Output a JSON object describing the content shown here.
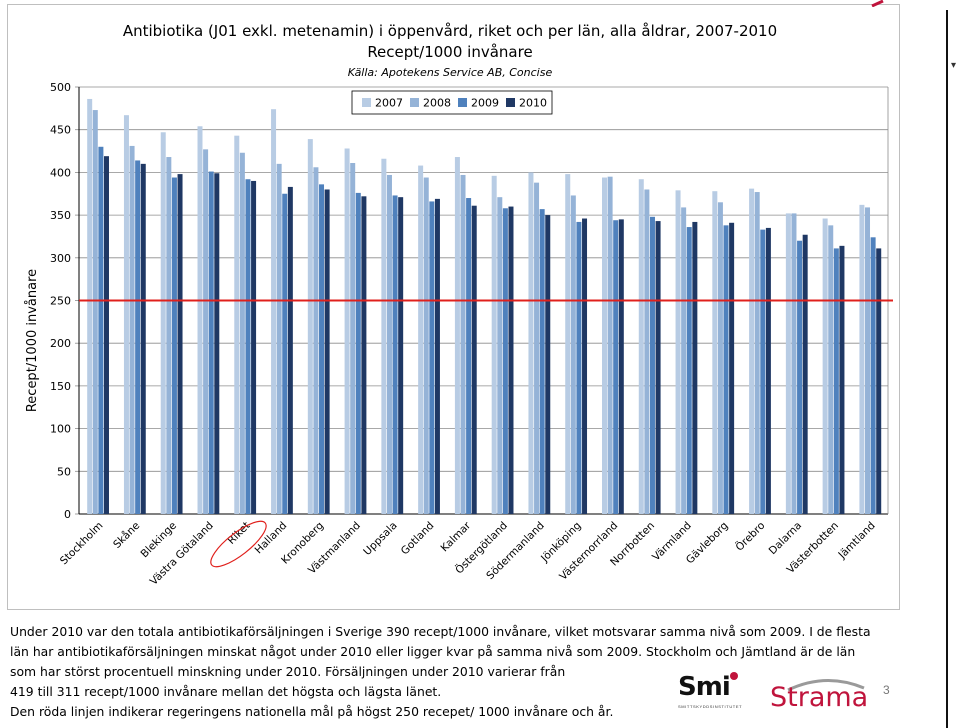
{
  "title_line1": "Antibiotika (J01 exkl. metenamin) i öppenvård, riket och per län, alla åldrar, 2007-2010",
  "title_line2": "Recept/1000 invånare",
  "source": "Källa: Apotekens Service AB, Concise",
  "chart_data": {
    "type": "bar",
    "ylabel": "Recept/1000 invånare",
    "xlabel": "",
    "ylim": [
      0,
      500
    ],
    "yticks": [
      0,
      50,
      100,
      150,
      200,
      250,
      300,
      350,
      400,
      450,
      500
    ],
    "grid": true,
    "legend_position": "top-center",
    "reference_line": {
      "value": 250,
      "color": "#e0201c"
    },
    "highlighted_category": "Riket",
    "categories": [
      "Stockholm",
      "Skåne",
      "Blekinge",
      "Västra Götaland",
      "Riket",
      "Halland",
      "Kronoberg",
      "Västmanland",
      "Uppsala",
      "Gotland",
      "Kalmar",
      "Östergötland",
      "Södermanland",
      "Jönköping",
      "Västernorrland",
      "Norrbotten",
      "Värmland",
      "Gävleborg",
      "Örebro",
      "Dalarna",
      "Västerbotten",
      "Jämtland"
    ],
    "series": [
      {
        "name": "2007",
        "color": "#b8cce4",
        "values": [
          486,
          467,
          447,
          454,
          443,
          474,
          439,
          428,
          416,
          408,
          418,
          396,
          400,
          398,
          394,
          392,
          379,
          378,
          381,
          352,
          346,
          362
        ]
      },
      {
        "name": "2008",
        "color": "#95b3d7",
        "values": [
          473,
          431,
          418,
          427,
          423,
          410,
          406,
          411,
          397,
          394,
          397,
          371,
          388,
          373,
          395,
          380,
          359,
          365,
          377,
          352,
          338,
          359
        ]
      },
      {
        "name": "2009",
        "color": "#4f81bd",
        "values": [
          430,
          414,
          394,
          401,
          392,
          375,
          386,
          376,
          373,
          366,
          370,
          358,
          357,
          342,
          344,
          348,
          336,
          338,
          333,
          320,
          311,
          324
        ]
      },
      {
        "name": "2010",
        "color": "#1f3864",
        "values": [
          419,
          410,
          398,
          399,
          390,
          383,
          380,
          372,
          371,
          369,
          361,
          360,
          350,
          346,
          345,
          343,
          342,
          341,
          335,
          327,
          314,
          311
        ]
      }
    ]
  },
  "caption": {
    "line1": "Under 2010 var den totala antibiotikaförsäljningen i Sverige 390 recept/1000 invånare, vilket motsvarar samma nivå som 2009. I de flesta",
    "line2": "län har antibiotikaförsäljningen minskat något under 2010 eller ligger kvar på samma nivå som 2009. Stockholm och Jämtland är de län",
    "line3": "som har störst procentuell minskning under 2010. Försäljningen under 2010 varierar från",
    "line4": "419 till 311 recept/1000 invånare mellan det högsta och lägsta länet.",
    "line5": "Den röda linjen indikerar regeringens nationella mål på högst 250 recepet/ 1000 invånare och år."
  },
  "logos": {
    "smi": "Smi",
    "smi_sub": "SMITTSKYDDSINSTITUTET",
    "strama": "Strama"
  },
  "page_number": "3"
}
